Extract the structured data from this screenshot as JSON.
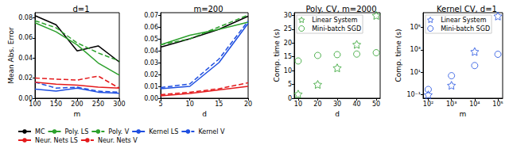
{
  "chart_data": [
    {
      "type": "line",
      "title": "d=1",
      "x_label": "m",
      "y_label": "Mean Abs. Error",
      "x": [
        100,
        150,
        200,
        250,
        300
      ],
      "xlim": [
        100,
        300
      ],
      "xticks": [
        100,
        150,
        200,
        250,
        300
      ],
      "ylim": [
        0,
        0.085
      ],
      "yticks": [
        {
          "value": 0,
          "label": "0.00"
        },
        {
          "value": 0.02,
          "label": "0.02"
        },
        {
          "value": 0.04,
          "label": "0.04"
        },
        {
          "value": 0.06,
          "label": "0.06"
        },
        {
          "value": 0.08,
          "label": "0.08"
        }
      ],
      "grid": false,
      "series": [
        {
          "name": "MC",
          "color": "#000000",
          "line_style": "solid",
          "marker": "none",
          "values": [
            0.082,
            0.073,
            0.047,
            0.052,
            0.036
          ]
        },
        {
          "name": "Poly. LS",
          "color": "#2ca02c",
          "line_style": "solid",
          "marker": "none",
          "values": [
            0.075,
            0.066,
            0.053,
            0.035,
            0.023
          ]
        },
        {
          "name": "Poly. V",
          "color": "#2ca02c",
          "line_style": "dashed",
          "marker": "none",
          "values": [
            0.077,
            0.07,
            0.055,
            0.045,
            0.037
          ]
        },
        {
          "name": "Kernel LS",
          "color": "#1f4fe0",
          "line_style": "solid",
          "marker": "none",
          "values": [
            0.009,
            0.007,
            0.01,
            0.006,
            0.005
          ]
        },
        {
          "name": "Kernel V",
          "color": "#1f4fe0",
          "line_style": "dashed",
          "marker": "none",
          "values": [
            0.016,
            0.01,
            0.011,
            0.007,
            0.006
          ]
        },
        {
          "name": "Neur. Nets LS",
          "color": "#e41a1c",
          "line_style": "solid",
          "marker": "none",
          "values": [
            0.016,
            0.014,
            0.013,
            0.011,
            0.01
          ]
        },
        {
          "name": "Neur. Nets V",
          "color": "#e41a1c",
          "line_style": "dashed",
          "marker": "none",
          "values": [
            0.02,
            0.019,
            0.018,
            0.022,
            0.01
          ]
        }
      ]
    },
    {
      "type": "line",
      "title": "m=200",
      "x_label": "d",
      "x": [
        5,
        10,
        15,
        20
      ],
      "xlim": [
        5,
        20
      ],
      "xticks": [
        5,
        10,
        15,
        20
      ],
      "ylim": [
        0,
        0.072
      ],
      "yticks": [
        {
          "value": 0,
          "label": "0.00"
        },
        {
          "value": 0.01,
          "label": "0.01"
        },
        {
          "value": 0.02,
          "label": "0.02"
        },
        {
          "value": 0.03,
          "label": "0.03"
        },
        {
          "value": 0.04,
          "label": "0.04"
        },
        {
          "value": 0.05,
          "label": "0.05"
        },
        {
          "value": 0.06,
          "label": "0.06"
        },
        {
          "value": 0.07,
          "label": "0.07"
        }
      ],
      "grid": false,
      "legend": "bottom",
      "series": [
        {
          "name": "MC",
          "color": "#000000",
          "line_style": "solid",
          "marker": "none",
          "values": [
            0.043,
            0.05,
            0.058,
            0.069
          ]
        },
        {
          "name": "Poly. LS",
          "color": "#2ca02c",
          "line_style": "solid",
          "marker": "none",
          "values": [
            0.045,
            0.053,
            0.058,
            0.064
          ]
        },
        {
          "name": "Poly. V",
          "color": "#2ca02c",
          "line_style": "dashed",
          "marker": "none",
          "values": [
            0.045,
            0.05,
            0.06,
            0.07
          ]
        },
        {
          "name": "Kernel LS",
          "color": "#1f4fe0",
          "line_style": "solid",
          "marker": "none",
          "values": [
            0.008,
            0.01,
            0.03,
            0.063
          ]
        },
        {
          "name": "Kernel V",
          "color": "#1f4fe0",
          "line_style": "dashed",
          "marker": "none",
          "values": [
            0.009,
            0.012,
            0.033,
            0.065
          ]
        },
        {
          "name": "Neur. Nets LS",
          "color": "#e41a1c",
          "line_style": "solid",
          "marker": "none",
          "values": [
            0.002,
            0.004,
            0.007,
            0.01
          ]
        },
        {
          "name": "Neur. Nets V",
          "color": "#e41a1c",
          "line_style": "dashed",
          "marker": "none",
          "values": [
            0.003,
            0.005,
            0.008,
            0.013
          ]
        }
      ]
    },
    {
      "type": "scatter",
      "title": "Poly. CV, m=2000",
      "x_label": "d",
      "y_label": "Comp. time (s)",
      "x": [
        10,
        20,
        30,
        40,
        50
      ],
      "xlim": [
        8,
        52
      ],
      "xticks": [
        10,
        20,
        30,
        40,
        50
      ],
      "ylim": [
        0,
        31
      ],
      "yticks": [
        0,
        5,
        10,
        15,
        20,
        25,
        30
      ],
      "grid": false,
      "legend": "upper left",
      "series": [
        {
          "name": "Linear System",
          "color": "#2ca02c",
          "marker": "star",
          "values": [
            1.5,
            5,
            11,
            19.5,
            30
          ]
        },
        {
          "name": "Mini-batch SGD",
          "color": "#2ca02c",
          "marker": "circle",
          "values": [
            13.5,
            15.5,
            15.8,
            16,
            16.5
          ]
        }
      ]
    },
    {
      "type": "scatter",
      "title": "Kernel CV, d=1",
      "x_label": "m",
      "y_label": "Comp. time (s)",
      "x": [
        100,
        1000,
        10000,
        100000
      ],
      "log": true,
      "xlim": [
        60,
        160000
      ],
      "xticks": [
        {
          "value": 100,
          "label": "10²"
        },
        {
          "value": 1000,
          "label": "10³"
        },
        {
          "value": 10000,
          "label": "10⁴"
        },
        {
          "value": 100000,
          "label": "10⁵"
        }
      ],
      "ylim": [
        0.05,
        2000000
      ],
      "yticks": [
        {
          "value": 0.1,
          "label": "10⁻¹"
        },
        {
          "value": 10,
          "label": "10¹"
        },
        {
          "value": 1000,
          "label": "10³"
        },
        {
          "value": 100000,
          "label": "10⁵"
        }
      ],
      "grid": false,
      "legend": "upper left",
      "series": [
        {
          "name": "Linear System",
          "color": "#1f4fe0",
          "marker": "star",
          "values": [
            0.1,
            0.7,
            700,
            1000000
          ]
        },
        {
          "name": "Mini-batch SGD",
          "color": "#1f4fe0",
          "marker": "circle",
          "values": [
            0.3,
            5,
            40,
            400
          ]
        }
      ]
    }
  ]
}
